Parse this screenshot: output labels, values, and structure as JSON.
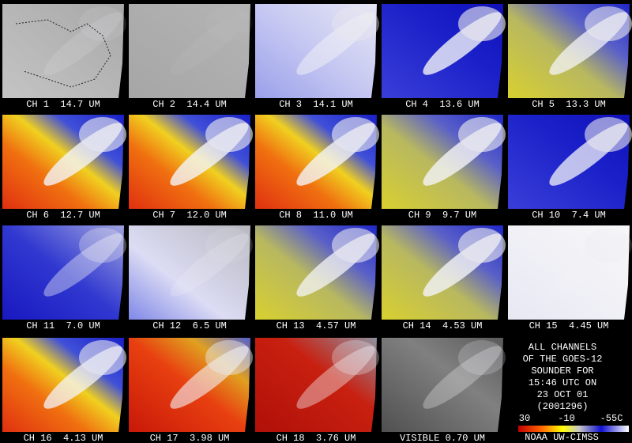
{
  "panels": [
    {
      "label": "CH 1  14.7 UM"
    },
    {
      "label": "CH 2  14.4 UM"
    },
    {
      "label": "CH 3  14.1 UM"
    },
    {
      "label": "CH 4  13.6 UM"
    },
    {
      "label": "CH 5  13.3 UM"
    },
    {
      "label": "CH 6  12.7 UM"
    },
    {
      "label": "CH 7  12.0 UM"
    },
    {
      "label": "CH 8  11.0 UM"
    },
    {
      "label": "CH 9  9.7 UM"
    },
    {
      "label": "CH 10  7.4 UM"
    },
    {
      "label": "CH 11  7.0 UM"
    },
    {
      "label": "CH 12  6.5 UM"
    },
    {
      "label": "CH 13  4.57 UM"
    },
    {
      "label": "CH 14  4.53 UM"
    },
    {
      "label": "CH 15  4.45 UM"
    },
    {
      "label": "CH 16  4.13 UM"
    },
    {
      "label": "CH 17  3.98 UM"
    },
    {
      "label": "CH 18  3.76 UM"
    },
    {
      "label": "VISIBLE 0.70 UM"
    }
  ],
  "info": {
    "lines": [
      "ALL CHANNELS",
      "OF THE GOES-12",
      "SOUNDER FOR",
      "15:46 UTC ON",
      "23 OCT 01",
      "(2001296)"
    ]
  },
  "legend": {
    "labels": [
      "30",
      "-10",
      "-55C"
    ],
    "credit": "NOAA UW-CIMSS"
  }
}
